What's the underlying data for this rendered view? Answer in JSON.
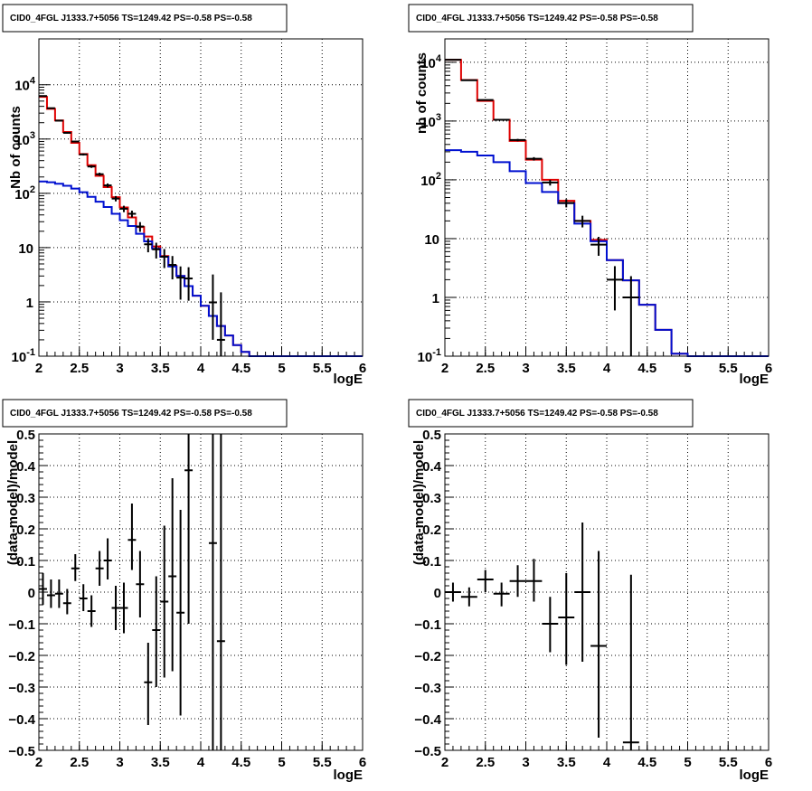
{
  "panels": [
    {
      "title": "CID0_4FGL J1333.7+5056 TS=1249.42 PS=-0.58 PS=-0.58",
      "xlabel": "logE",
      "ylabel": "Nb of counts"
    },
    {
      "title": "CID0_4FGL J1333.7+5056 TS=1249.42 PS=-0.58 PS=-0.58",
      "xlabel": "logE",
      "ylabel": "nb of counts"
    },
    {
      "title": "CID0_4FGL J1333.7+5056 TS=1249.42 PS=-0.58 PS=-0.58",
      "xlabel": "logE",
      "ylabel": "(data-model)/model"
    },
    {
      "title": "CID0_4FGL J1333.7+5056 TS=1249.42 PS=-0.58 PS=-0.58",
      "xlabel": "logE",
      "ylabel": "(data-model)/model"
    }
  ],
  "colors": {
    "total_model": "#e00000",
    "source_model": "#0010d0",
    "data": "#000000"
  },
  "chart_data": [
    {
      "type": "line",
      "title": "CID0_4FGL J1333.7+5056 TS=1249.42 PS=-0.58 PS=-0.58",
      "xlabel": "logE",
      "ylabel": "Nb of counts",
      "xlim": [
        2,
        6
      ],
      "ylim": [
        0.1,
        70000
      ],
      "yscale": "log",
      "grid": true,
      "xticks": [
        "2",
        "2.5",
        "3",
        "3.5",
        "4",
        "4.5",
        "5",
        "5.5",
        "6"
      ],
      "yticks": [
        "10^-1",
        "1",
        "10",
        "10^2",
        "10^3",
        "10^4"
      ],
      "bin_edges": [
        2.0,
        2.1,
        2.2,
        2.3,
        2.4,
        2.5,
        2.6,
        2.7,
        2.8,
        2.9,
        3.0,
        3.1,
        3.2,
        3.3,
        3.4,
        3.5,
        3.6,
        3.7,
        3.8,
        3.9,
        4.0,
        4.1,
        4.2,
        4.3,
        4.4,
        4.5,
        4.6,
        4.7,
        4.8,
        4.9,
        5.0,
        5.1,
        5.2,
        5.3,
        5.4,
        5.5,
        5.6,
        5.7,
        5.8,
        5.9,
        6.0
      ],
      "series": [
        {
          "style": "step",
          "color": "#e00000",
          "values": [
            6000,
            3600,
            2200,
            1350,
            850,
            530,
            330,
            210,
            130,
            85,
            55,
            36,
            24,
            16,
            10.5,
            7,
            4.6,
            3.0,
            1.95,
            1.3,
            0.85,
            0.55,
            0.36,
            0.24,
            0.16,
            0.12,
            0.1,
            0.1,
            0.1,
            0.1,
            0.1,
            0.1,
            0.1,
            0.1,
            0.1,
            0.1,
            0.1,
            0.1,
            0.1,
            0.1
          ]
        },
        {
          "style": "step",
          "color": "#0010d0",
          "values": [
            165,
            160,
            150,
            138,
            122,
            105,
            86,
            70,
            56,
            42,
            32,
            25,
            18,
            13,
            9.5,
            6.8,
            4.5,
            3.0,
            1.95,
            1.3,
            0.85,
            0.55,
            0.36,
            0.24,
            0.16,
            0.12,
            0.1,
            0.1,
            0.1,
            0.1,
            0.1,
            0.1,
            0.1,
            0.1,
            0.1,
            0.1,
            0.1,
            0.1,
            0.1,
            0.1
          ]
        },
        {
          "style": "errorbar",
          "color": "#000000",
          "points": [
            {
              "x": 2.05,
              "y": 6200,
              "lo": 6120,
              "hi": 6280
            },
            {
              "x": 2.15,
              "y": 3700,
              "lo": 3640,
              "hi": 3760
            },
            {
              "x": 2.25,
              "y": 2180,
              "lo": 2130,
              "hi": 2230
            },
            {
              "x": 2.35,
              "y": 1300,
              "lo": 1260,
              "hi": 1340
            },
            {
              "x": 2.45,
              "y": 900,
              "lo": 870,
              "hi": 930
            },
            {
              "x": 2.55,
              "y": 520,
              "lo": 497,
              "hi": 543
            },
            {
              "x": 2.65,
              "y": 312,
              "lo": 294,
              "hi": 330
            },
            {
              "x": 2.75,
              "y": 225,
              "lo": 210,
              "hi": 240
            },
            {
              "x": 2.85,
              "y": 140,
              "lo": 128,
              "hi": 152
            },
            {
              "x": 2.95,
              "y": 80,
              "lo": 71,
              "hi": 89
            },
            {
              "x": 3.05,
              "y": 52,
              "lo": 45,
              "hi": 59
            },
            {
              "x": 3.15,
              "y": 42,
              "lo": 36,
              "hi": 48
            },
            {
              "x": 3.25,
              "y": 24.5,
              "lo": 19.5,
              "hi": 29.5
            },
            {
              "x": 3.35,
              "y": 11.5,
              "lo": 8.2,
              "hi": 14.8
            },
            {
              "x": 3.45,
              "y": 9.3,
              "lo": 6.3,
              "hi": 12.3
            },
            {
              "x": 3.55,
              "y": 6.8,
              "lo": 4.2,
              "hi": 9.4
            },
            {
              "x": 3.65,
              "y": 4.8,
              "lo": 2.6,
              "hi": 7.0
            },
            {
              "x": 3.75,
              "y": 2.8,
              "lo": 1.1,
              "hi": 4.5
            },
            {
              "x": 3.85,
              "y": 2.7,
              "lo": 1.05,
              "hi": 4.35
            },
            {
              "x": 4.15,
              "y": 0.98,
              "lo": 0.2,
              "hi": 3.2
            },
            {
              "x": 4.25,
              "y": 0.2,
              "lo": 0.1,
              "hi": 1.5
            }
          ]
        }
      ]
    },
    {
      "type": "line",
      "title": "CID0_4FGL J1333.7+5056 TS=1249.42 PS=-0.58 PS=-0.58",
      "xlabel": "logE",
      "ylabel": "nb of counts",
      "xlim": [
        2,
        6
      ],
      "ylim": [
        0.1,
        25000
      ],
      "yscale": "log",
      "grid": true,
      "xticks": [
        "2",
        "2.5",
        "3",
        "3.5",
        "4",
        "4.5",
        "5",
        "5.5",
        "6"
      ],
      "yticks": [
        "10^-1",
        "1",
        "10",
        "10^2",
        "10^3",
        "10^4"
      ],
      "bin_edges": [
        2.0,
        2.2,
        2.4,
        2.6,
        2.8,
        3.0,
        3.2,
        3.4,
        3.6,
        3.8,
        4.0,
        4.2,
        4.4,
        4.6,
        4.8,
        5.0,
        5.2,
        5.4,
        5.6,
        5.8,
        6.0
      ],
      "series": [
        {
          "style": "step",
          "color": "#e00000",
          "values": [
            11000,
            5000,
            2200,
            1050,
            460,
            220,
            100,
            44,
            20,
            9.5,
            4.3,
            1.95,
            0.75,
            0.28,
            0.11,
            0.1,
            0.1,
            0.1,
            0.1,
            0.1
          ]
        },
        {
          "style": "step",
          "color": "#0010d0",
          "values": [
            320,
            300,
            260,
            200,
            140,
            88,
            62,
            40,
            18,
            9.0,
            4.3,
            1.95,
            0.75,
            0.28,
            0.11,
            0.1,
            0.1,
            0.1,
            0.1,
            0.1
          ]
        },
        {
          "style": "errorbar",
          "color": "#000000",
          "points": [
            {
              "x": 2.1,
              "y": 11000,
              "lo": 10890,
              "hi": 11110
            },
            {
              "x": 2.3,
              "y": 4950,
              "lo": 4880,
              "hi": 5020
            },
            {
              "x": 2.5,
              "y": 2280,
              "lo": 2230,
              "hi": 2330
            },
            {
              "x": 2.7,
              "y": 1050,
              "lo": 1018,
              "hi": 1082
            },
            {
              "x": 2.9,
              "y": 475,
              "lo": 453,
              "hi": 497
            },
            {
              "x": 3.1,
              "y": 228,
              "lo": 213,
              "hi": 243
            },
            {
              "x": 3.3,
              "y": 90,
              "lo": 80,
              "hi": 100
            },
            {
              "x": 3.5,
              "y": 40.5,
              "lo": 34,
              "hi": 47
            },
            {
              "x": 3.7,
              "y": 20,
              "lo": 15.5,
              "hi": 24.5
            },
            {
              "x": 3.9,
              "y": 7.9,
              "lo": 5.1,
              "hi": 10.7
            },
            {
              "x": 4.1,
              "y": 2.0,
              "lo": 0.6,
              "hi": 3.4
            },
            {
              "x": 4.3,
              "y": 1.0,
              "lo": 0.1,
              "hi": 2.3
            }
          ]
        }
      ]
    },
    {
      "type": "scatter",
      "title": "CID0_4FGL J1333.7+5056 TS=1249.42 PS=-0.58 PS=-0.58",
      "xlabel": "logE",
      "ylabel": "(data-model)/model",
      "xlim": [
        2,
        6
      ],
      "ylim": [
        -0.5,
        0.5
      ],
      "grid": true,
      "xticks": [
        "2",
        "2.5",
        "3",
        "3.5",
        "4",
        "4.5",
        "5",
        "5.5",
        "6"
      ],
      "yticks": [
        "−0.5",
        "−0.4",
        "−0.3",
        "−0.2",
        "−0.1",
        "0",
        "0.1",
        "0.2",
        "0.3",
        "0.4",
        "0.5"
      ],
      "series": [
        {
          "style": "errorbar",
          "color": "#000000",
          "points": [
            {
              "x": 2.05,
              "y": 0.01,
              "lo": -0.04,
              "hi": 0.06
            },
            {
              "x": 2.15,
              "y": -0.01,
              "lo": -0.05,
              "hi": 0.04
            },
            {
              "x": 2.25,
              "y": -0.005,
              "lo": -0.05,
              "hi": 0.04
            },
            {
              "x": 2.35,
              "y": -0.035,
              "lo": -0.07,
              "hi": 0.01
            },
            {
              "x": 2.45,
              "y": 0.075,
              "lo": 0.035,
              "hi": 0.12
            },
            {
              "x": 2.55,
              "y": -0.02,
              "lo": -0.06,
              "hi": 0.025
            },
            {
              "x": 2.65,
              "y": -0.06,
              "lo": -0.11,
              "hi": -0.01
            },
            {
              "x": 2.75,
              "y": 0.075,
              "lo": 0.02,
              "hi": 0.13
            },
            {
              "x": 2.85,
              "y": 0.1,
              "lo": 0.04,
              "hi": 0.17
            },
            {
              "x": 2.95,
              "y": -0.05,
              "lo": -0.12,
              "hi": 0.02
            },
            {
              "x": 3.05,
              "y": -0.05,
              "lo": -0.13,
              "hi": 0.03
            },
            {
              "x": 3.15,
              "y": 0.165,
              "lo": 0.07,
              "hi": 0.28
            },
            {
              "x": 3.25,
              "y": 0.025,
              "lo": -0.08,
              "hi": 0.13
            },
            {
              "x": 3.35,
              "y": -0.285,
              "lo": -0.42,
              "hi": -0.16
            },
            {
              "x": 3.45,
              "y": -0.12,
              "lo": -0.3,
              "hi": 0.05
            },
            {
              "x": 3.55,
              "y": -0.03,
              "lo": -0.27,
              "hi": 0.21
            },
            {
              "x": 3.65,
              "y": 0.05,
              "lo": -0.25,
              "hi": 0.36
            },
            {
              "x": 3.75,
              "y": -0.065,
              "lo": -0.39,
              "hi": 0.26
            },
            {
              "x": 3.85,
              "y": 0.385,
              "lo": -0.1,
              "hi": 0.5
            },
            {
              "x": 4.15,
              "y": 0.155,
              "lo": -0.5,
              "hi": 0.5
            },
            {
              "x": 4.25,
              "y": -0.155,
              "lo": -0.5,
              "hi": 0.5
            }
          ]
        }
      ]
    },
    {
      "type": "scatter",
      "title": "CID0_4FGL J1333.7+5056 TS=1249.42 PS=-0.58 PS=-0.58",
      "xlabel": "logE",
      "ylabel": "(data-model)/model",
      "xlim": [
        2,
        6
      ],
      "ylim": [
        -0.5,
        0.5
      ],
      "grid": true,
      "xticks": [
        "2",
        "2.5",
        "3",
        "3.5",
        "4",
        "4.5",
        "5",
        "5.5",
        "6"
      ],
      "yticks": [
        "−0.5",
        "−0.4",
        "−0.3",
        "−0.2",
        "−0.1",
        "0",
        "0.1",
        "0.2",
        "0.3",
        "0.4",
        "0.5"
      ],
      "series": [
        {
          "style": "errorbar",
          "color": "#000000",
          "points": [
            {
              "x": 2.1,
              "y": 0.0,
              "lo": -0.03,
              "hi": 0.03
            },
            {
              "x": 2.3,
              "y": -0.015,
              "lo": -0.045,
              "hi": 0.015
            },
            {
              "x": 2.5,
              "y": 0.04,
              "lo": 0.0,
              "hi": 0.07
            },
            {
              "x": 2.7,
              "y": -0.005,
              "lo": -0.045,
              "hi": 0.03
            },
            {
              "x": 2.9,
              "y": 0.035,
              "lo": -0.015,
              "hi": 0.085
            },
            {
              "x": 3.1,
              "y": 0.035,
              "lo": -0.03,
              "hi": 0.105
            },
            {
              "x": 3.3,
              "y": -0.1,
              "lo": -0.19,
              "hi": -0.015
            },
            {
              "x": 3.5,
              "y": -0.08,
              "lo": -0.23,
              "hi": 0.06
            },
            {
              "x": 3.7,
              "y": 0.0,
              "lo": -0.22,
              "hi": 0.22
            },
            {
              "x": 3.9,
              "y": -0.17,
              "lo": -0.46,
              "hi": 0.13
            },
            {
              "x": 4.3,
              "y": -0.475,
              "lo": -0.5,
              "hi": 0.055
            }
          ]
        }
      ]
    }
  ]
}
